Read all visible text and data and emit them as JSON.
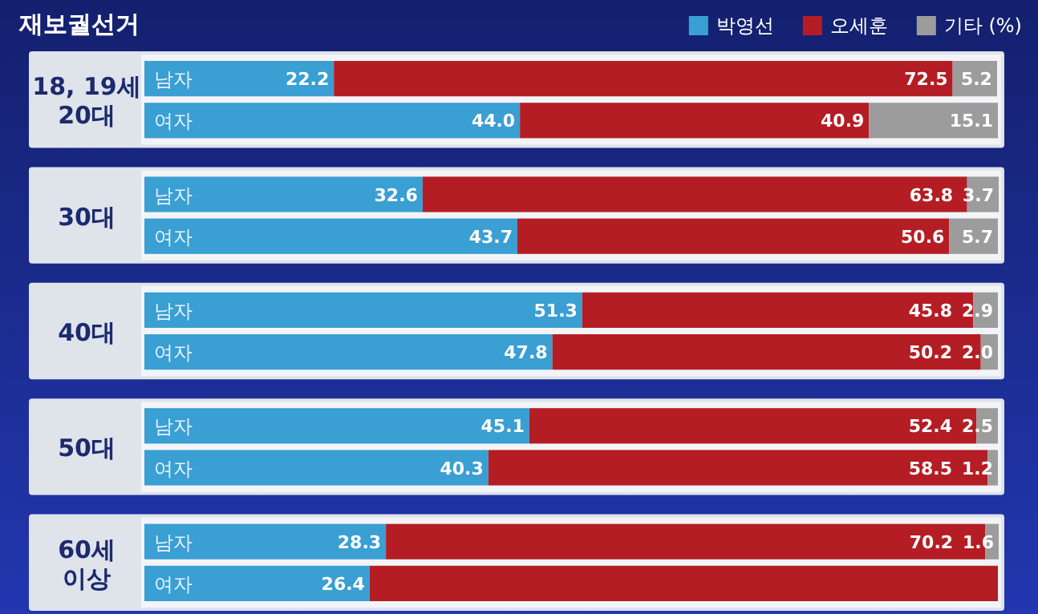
{
  "chart_data": [
    {
      "type": "bar",
      "title": "재보궐선거",
      "ylabel": "18, 19세 20대",
      "orientation": "horizontal",
      "stacked": true,
      "xlim": [
        0,
        100
      ],
      "legend": "top right",
      "categories": [
        "남자",
        "여자"
      ],
      "series": [
        {
          "name": "박영선",
          "color": "#3a9fd2",
          "values": [
            22.2,
            44.0
          ],
          "value_labels": [
            "22.2",
            "44.0"
          ]
        },
        {
          "name": "오세훈",
          "color": "#b51d24",
          "values": [
            72.5,
            40.9
          ],
          "value_labels": [
            "72.5",
            "40.9"
          ]
        },
        {
          "name": "기타 (%)",
          "color": "#9c9c9c",
          "values": [
            5.2,
            15.1
          ],
          "value_labels": [
            "5.2",
            "15.1"
          ]
        }
      ]
    },
    {
      "type": "bar",
      "ylabel": "30대",
      "orientation": "horizontal",
      "stacked": true,
      "xlim": [
        0,
        100
      ],
      "categories": [
        "남자",
        "여자"
      ],
      "series": [
        {
          "color": "#3a9fd2",
          "values": [
            32.6,
            43.7
          ],
          "value_labels": [
            "32.6",
            "43.7"
          ]
        },
        {
          "color": "#b51d24",
          "values": [
            63.8,
            50.6
          ],
          "value_labels": [
            "63.8",
            "50.6"
          ]
        },
        {
          "color": "#9c9c9c",
          "values": [
            3.7,
            5.7
          ],
          "value_labels": [
            "3.7",
            "5.7"
          ]
        }
      ]
    },
    {
      "type": "bar",
      "ylabel": "40대",
      "orientation": "horizontal",
      "stacked": true,
      "xlim": [
        0,
        100
      ],
      "categories": [
        "남자",
        "여자"
      ],
      "series": [
        {
          "color": "#3a9fd2",
          "values": [
            51.3,
            47.8
          ],
          "value_labels": [
            "51.3",
            "47.8"
          ]
        },
        {
          "color": "#b51d24",
          "values": [
            45.8,
            50.2
          ],
          "value_labels": [
            "45.8",
            "50.2"
          ]
        },
        {
          "color": "#9c9c9c",
          "values": [
            2.9,
            2.0
          ],
          "value_labels": [
            "2.9",
            "2.0"
          ]
        }
      ]
    },
    {
      "type": "bar",
      "ylabel": "50대",
      "orientation": "horizontal",
      "stacked": true,
      "xlim": [
        0,
        100
      ],
      "categories": [
        "남자",
        "여자"
      ],
      "series": [
        {
          "color": "#3a9fd2",
          "values": [
            45.1,
            40.3
          ],
          "value_labels": [
            "45.1",
            "40.3"
          ]
        },
        {
          "color": "#b51d24",
          "values": [
            52.4,
            58.5
          ],
          "value_labels": [
            "52.4",
            "58.5"
          ]
        },
        {
          "color": "#9c9c9c",
          "values": [
            2.5,
            1.2
          ],
          "value_labels": [
            "2.5",
            "1.2"
          ]
        }
      ]
    },
    {
      "type": "bar",
      "ylabel": "60세 이상",
      "orientation": "horizontal",
      "stacked": true,
      "xlim": [
        0,
        100
      ],
      "categories": [
        "남자",
        "여자"
      ],
      "series": [
        {
          "color": "#3a9fd2",
          "values": [
            28.3,
            26.4
          ],
          "value_labels": [
            "28.3",
            "26.4"
          ]
        },
        {
          "color": "#b51d24",
          "values": [
            70.2,
            73.6
          ],
          "value_labels": [
            "70.2",
            null
          ]
        },
        {
          "color": "#9c9c9c",
          "values": [
            1.6,
            null
          ],
          "value_labels": [
            "1.6",
            null
          ]
        }
      ]
    }
  ]
}
